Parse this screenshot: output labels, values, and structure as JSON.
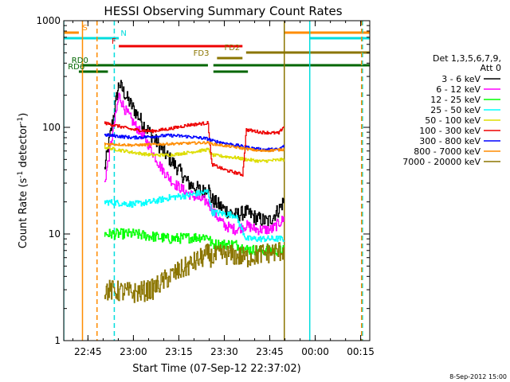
{
  "chart_data": {
    "type": "line",
    "title": "HESSI Observing Summary Count Rates",
    "xlabel": "Start Time (07-Sep-12 22:37:02)",
    "ylabel_pre": "Count Rate (s",
    "ylabel_sup": "-1",
    "ylabel_post": " detector",
    "ylabel_sup2": "-1",
    "ylabel_end": ")",
    "footer": "8-Sep-2012 15:00",
    "y_scale": "log",
    "ylim": [
      1,
      1000
    ],
    "xlim": [
      22.617,
      24.3
    ],
    "x_ticks": [
      {
        "t": 22.75,
        "label": "22:45"
      },
      {
        "t": 23.0,
        "label": "23:00"
      },
      {
        "t": 23.25,
        "label": "23:15"
      },
      {
        "t": 23.5,
        "label": "23:30"
      },
      {
        "t": 23.75,
        "label": "23:45"
      },
      {
        "t": 24.0,
        "label": "00:00"
      },
      {
        "t": 24.25,
        "label": "00:15"
      }
    ],
    "y_ticks": [
      {
        "v": 1,
        "label": "1"
      },
      {
        "v": 10,
        "label": "10"
      },
      {
        "v": 100,
        "label": "100"
      },
      {
        "v": 1000,
        "label": "1000"
      }
    ],
    "legend_header": [
      "Det 1,3,5,6,7,9,",
      "Att 0"
    ],
    "legend_placement": "right",
    "vlines": [
      {
        "t": 22.617,
        "color": "#00dddd",
        "dash": false
      },
      {
        "t": 22.8,
        "color": "#ff8c00",
        "dash": true
      },
      {
        "t": 22.72,
        "color": "#ff8c00",
        "dash": false
      },
      {
        "t": 22.895,
        "color": "#00dddd",
        "dash": true
      },
      {
        "t": 23.83,
        "color": "#8b7500",
        "dash": false
      },
      {
        "t": 23.97,
        "color": "#00dddd",
        "dash": false
      },
      {
        "t": 24.26,
        "color": "#00dddd",
        "dash": true
      },
      {
        "t": 24.255,
        "color": "#ff8c00",
        "dash": true
      }
    ],
    "flags": [
      {
        "label": "S",
        "color": "#ff8c00",
        "y": 41,
        "segments": [
          [
            22.617,
            22.7
          ],
          [
            23.83,
            24.3
          ]
        ],
        "label_t": 22.72
      },
      {
        "label": "N",
        "color": "#00dddd",
        "y": 48,
        "segments": [
          [
            22.617,
            22.92
          ],
          [
            23.97,
            24.3
          ]
        ],
        "label_t": 22.93
      },
      {
        "label": "F",
        "color": "#ee0000",
        "y": 58,
        "segments": [
          [
            22.92,
            23.6
          ]
        ],
        "label_t": 22.88
      },
      {
        "label": "FD2",
        "color": "#8b7500",
        "y": 66,
        "segments": [
          [
            23.62,
            24.3
          ]
        ],
        "label_t": 23.5
      },
      {
        "label": "FD3",
        "color": "#8b7500",
        "y": 73,
        "segments": [
          [
            23.46,
            23.6
          ]
        ],
        "label_t": 23.33
      },
      {
        "label": "RD0",
        "color": "#006600",
        "y": 82,
        "segments": [
          [
            22.72,
            23.41
          ],
          [
            23.44,
            24.3
          ]
        ],
        "label_t": 22.66
      },
      {
        "label": "RD6",
        "color": "#006600",
        "y": 90,
        "segments": [
          [
            22.7,
            22.86
          ],
          [
            23.44,
            23.63
          ]
        ],
        "label_t": 22.64
      }
    ],
    "series": [
      {
        "name": "3 - 6 keV",
        "color": "#000000",
        "jitter": 0.07,
        "points": [
          [
            22.84,
            40
          ],
          [
            22.92,
            260
          ],
          [
            22.97,
            180
          ],
          [
            23.05,
            110
          ],
          [
            23.12,
            75
          ],
          [
            23.18,
            55
          ],
          [
            23.25,
            40
          ],
          [
            23.3,
            30
          ],
          [
            23.38,
            25
          ],
          [
            23.41,
            28
          ],
          [
            23.43,
            21
          ],
          [
            23.5,
            17
          ],
          [
            23.56,
            15
          ],
          [
            23.62,
            16
          ],
          [
            23.68,
            14
          ],
          [
            23.74,
            13
          ],
          [
            23.8,
            17
          ],
          [
            23.83,
            21
          ]
        ]
      },
      {
        "name": "6 - 12 keV",
        "color": "#ff00ff",
        "jitter": 0.05,
        "points": [
          [
            22.84,
            30
          ],
          [
            22.92,
            200
          ],
          [
            22.95,
            150
          ],
          [
            23.0,
            110
          ],
          [
            23.08,
            70
          ],
          [
            23.15,
            42
          ],
          [
            23.22,
            30
          ],
          [
            23.3,
            24
          ],
          [
            23.37,
            21
          ],
          [
            23.41,
            20
          ],
          [
            23.44,
            16
          ],
          [
            23.5,
            12
          ],
          [
            23.56,
            11
          ],
          [
            23.62,
            12
          ],
          [
            23.68,
            11
          ],
          [
            23.76,
            11
          ],
          [
            23.83,
            14
          ]
        ]
      },
      {
        "name": "12 - 25 keV",
        "color": "#00ff00",
        "jitter": 0.05,
        "points": [
          [
            22.84,
            10
          ],
          [
            23.0,
            10
          ],
          [
            23.1,
            9.5
          ],
          [
            23.2,
            9
          ],
          [
            23.3,
            9.2
          ],
          [
            23.41,
            9.5
          ],
          [
            23.43,
            8
          ],
          [
            23.56,
            8
          ],
          [
            23.62,
            7.2
          ],
          [
            23.7,
            7
          ],
          [
            23.83,
            7
          ]
        ]
      },
      {
        "name": "25 - 50 keV",
        "color": "#00ffff",
        "jitter": 0.03,
        "points": [
          [
            22.84,
            20
          ],
          [
            23.0,
            19
          ],
          [
            23.1,
            20
          ],
          [
            23.2,
            22
          ],
          [
            23.3,
            23
          ],
          [
            23.41,
            25
          ],
          [
            23.43,
            16
          ],
          [
            23.56,
            15
          ],
          [
            23.62,
            9
          ],
          [
            23.7,
            9
          ],
          [
            23.83,
            9
          ]
        ]
      },
      {
        "name": "50 - 100 keV",
        "color": "#dddd00",
        "jitter": 0.015,
        "points": [
          [
            22.84,
            65
          ],
          [
            23.0,
            58
          ],
          [
            23.1,
            55
          ],
          [
            23.2,
            55
          ],
          [
            23.3,
            58
          ],
          [
            23.41,
            62
          ],
          [
            23.43,
            55
          ],
          [
            23.56,
            52
          ],
          [
            23.62,
            50
          ],
          [
            23.7,
            48
          ],
          [
            23.83,
            50
          ]
        ]
      },
      {
        "name": "100 - 300 keV",
        "color": "#ee0000",
        "jitter": 0.015,
        "points": [
          [
            22.84,
            110
          ],
          [
            23.0,
            95
          ],
          [
            23.1,
            92
          ],
          [
            23.2,
            97
          ],
          [
            23.3,
            105
          ],
          [
            23.41,
            110
          ],
          [
            23.43,
            45
          ],
          [
            23.5,
            40
          ],
          [
            23.6,
            36
          ],
          [
            23.62,
            95
          ],
          [
            23.7,
            90
          ],
          [
            23.8,
            88
          ],
          [
            23.83,
            105
          ]
        ]
      },
      {
        "name": "300 - 800 keV",
        "color": "#0000ff",
        "jitter": 0.015,
        "points": [
          [
            22.84,
            85
          ],
          [
            23.0,
            80
          ],
          [
            23.1,
            82
          ],
          [
            23.2,
            84
          ],
          [
            23.3,
            82
          ],
          [
            23.41,
            78
          ],
          [
            23.43,
            75
          ],
          [
            23.56,
            68
          ],
          [
            23.62,
            65
          ],
          [
            23.7,
            62
          ],
          [
            23.8,
            62
          ],
          [
            23.83,
            68
          ]
        ]
      },
      {
        "name": "800 - 7000 keV",
        "color": "#ff8c00",
        "jitter": 0.012,
        "points": [
          [
            22.84,
            70
          ],
          [
            23.0,
            68
          ],
          [
            23.2,
            70
          ],
          [
            23.41,
            72
          ],
          [
            23.43,
            70
          ],
          [
            23.56,
            65
          ],
          [
            23.7,
            60
          ],
          [
            23.83,
            62
          ]
        ]
      },
      {
        "name": "7000 - 20000 keV",
        "color": "#8b7500",
        "jitter": 0.1,
        "points": [
          [
            22.84,
            3
          ],
          [
            23.0,
            2.8
          ],
          [
            23.1,
            3
          ],
          [
            23.2,
            4
          ],
          [
            23.3,
            5
          ],
          [
            23.41,
            6.5
          ],
          [
            23.43,
            6
          ],
          [
            23.5,
            6.5
          ],
          [
            23.62,
            6
          ],
          [
            23.7,
            6.5
          ],
          [
            23.83,
            7
          ]
        ]
      }
    ]
  }
}
